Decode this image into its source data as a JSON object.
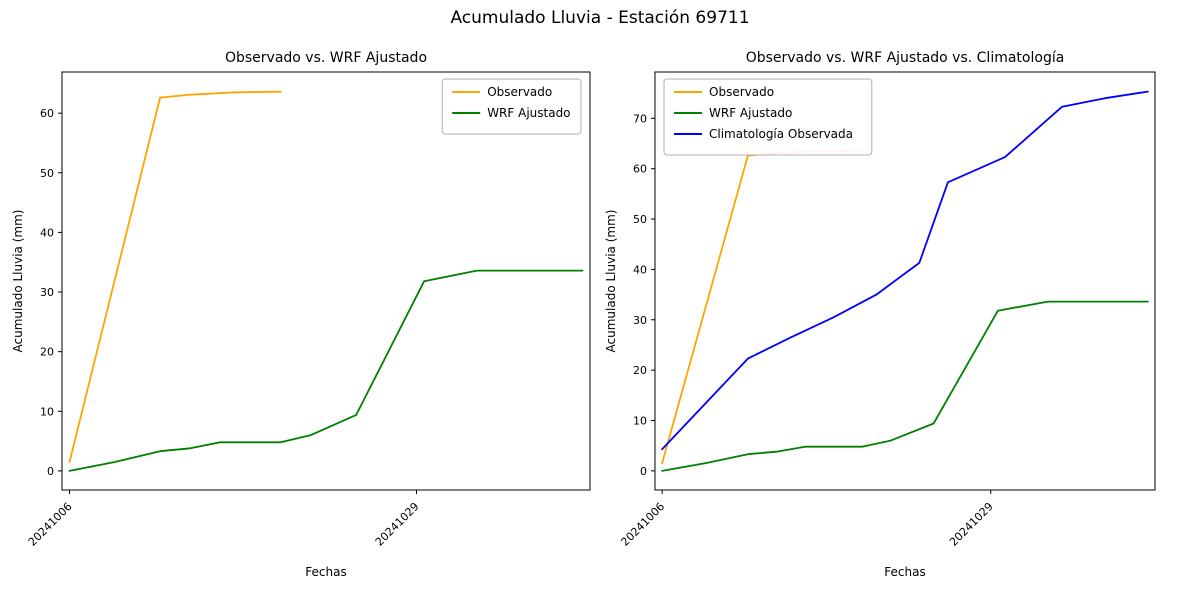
{
  "figure": {
    "title": "Acumulado Lluvia - Estación 69711",
    "background": "#ffffff"
  },
  "chart_data": [
    {
      "type": "line",
      "title": "Observado vs. WRF Ajustado",
      "xlabel": "Fechas",
      "ylabel": "Acumulado Lluvia (mm)",
      "x_unit": "days since 2024-10-06",
      "xlim": [
        -0.5,
        34.5
      ],
      "ylim": [
        -3.2,
        66.9
      ],
      "yticks": [
        0,
        10,
        20,
        30,
        40,
        50,
        60
      ],
      "xticks": [
        {
          "day": 0,
          "label": "20241006"
        },
        {
          "day": 23,
          "label": "20241029"
        }
      ],
      "legend_position": "upper right",
      "grid": false,
      "series": [
        {
          "name": "Observado",
          "color": "#ffa500",
          "x": [
            0,
            6,
            8,
            11,
            14
          ],
          "y": [
            1.5,
            62.6,
            63.1,
            63.5,
            63.6
          ]
        },
        {
          "name": "WRF Ajustado",
          "color": "#008000",
          "x": [
            0,
            3,
            6,
            8,
            10,
            14,
            16,
            19,
            23.5,
            27,
            34
          ],
          "y": [
            0,
            1.5,
            3.3,
            3.8,
            4.8,
            4.8,
            6.0,
            9.4,
            31.8,
            33.6,
            33.6
          ]
        }
      ]
    },
    {
      "type": "line",
      "title": "Observado vs. WRF Ajustado vs. Climatología",
      "xlabel": "Fechas",
      "ylabel": "Acumulado Lluvia (mm)",
      "x_unit": "days since 2024-10-06",
      "xlim": [
        -0.5,
        34.5
      ],
      "ylim": [
        -3.8,
        79.2
      ],
      "yticks": [
        0,
        10,
        20,
        30,
        40,
        50,
        60,
        70
      ],
      "xticks": [
        {
          "day": 0,
          "label": "20241006"
        },
        {
          "day": 23,
          "label": "20241029"
        }
      ],
      "legend_position": "upper left",
      "grid": false,
      "series": [
        {
          "name": "Observado",
          "color": "#ffa500",
          "x": [
            0,
            6,
            8,
            11,
            14
          ],
          "y": [
            1.5,
            62.6,
            63.1,
            63.5,
            63.6
          ]
        },
        {
          "name": "WRF Ajustado",
          "color": "#008000",
          "x": [
            0,
            3,
            6,
            8,
            10,
            14,
            16,
            19,
            23.5,
            27,
            34
          ],
          "y": [
            0,
            1.5,
            3.3,
            3.8,
            4.8,
            4.8,
            6.0,
            9.4,
            31.8,
            33.6,
            33.6
          ]
        },
        {
          "name": "Climatología Observada",
          "color": "#0000ff",
          "x": [
            0,
            6,
            9,
            12,
            15,
            18,
            20,
            24,
            28,
            31,
            34
          ],
          "y": [
            4.3,
            22.3,
            26.5,
            30.5,
            35.0,
            41.3,
            57.3,
            62.3,
            72.3,
            74.0,
            75.3
          ]
        }
      ]
    }
  ]
}
